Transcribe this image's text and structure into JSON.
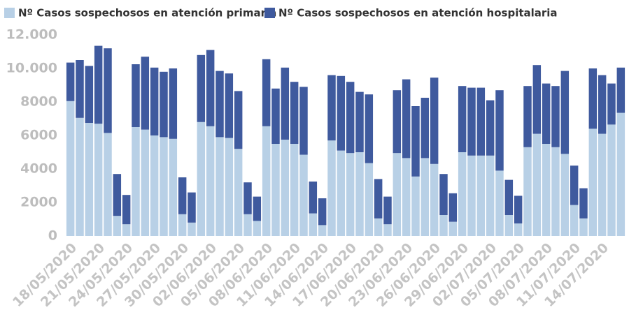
{
  "chart_data": {
    "type": "stacked_bar",
    "categories": [
      "18/05/2020",
      null,
      null,
      "21/05/2020",
      null,
      null,
      "24/05/2020",
      null,
      null,
      "27/05/2020",
      null,
      null,
      "30/05/2020",
      null,
      null,
      "02/06/2020",
      null,
      null,
      "05/06/2020",
      null,
      null,
      "08/06/2020",
      null,
      null,
      "11/06/2020",
      null,
      null,
      "14/06/2020",
      null,
      null,
      "17/06/2020",
      null,
      null,
      "20/06/2020",
      null,
      null,
      "23/06/2020",
      null,
      null,
      "26/06/2020",
      null,
      null,
      "29/06/2020",
      null,
      null,
      "02/07/2020",
      null,
      null,
      "05/07/2020",
      null,
      null,
      "08/07/2020",
      null,
      null,
      "11/07/2020",
      null,
      null,
      "14/07/2020",
      null,
      null
    ],
    "series": [
      {
        "name": "Nº Casos sospechosos en atención primaria",
        "color": "#b8d0e6",
        "values": [
          8050,
          7050,
          6750,
          6700,
          6150,
          1200,
          700,
          6500,
          6350,
          6000,
          5900,
          5800,
          1300,
          800,
          6800,
          6550,
          5900,
          5850,
          5200,
          1300,
          900,
          6550,
          5500,
          5750,
          5500,
          4850,
          1350,
          650,
          5700,
          5100,
          4950,
          5000,
          4350,
          1050,
          700,
          4950,
          4650,
          3550,
          4650,
          4300,
          1250,
          850,
          5000,
          4800,
          4800,
          4800,
          3900,
          1250,
          750,
          5300,
          6100,
          5500,
          5300,
          4900,
          1850,
          1050,
          6400,
          6100,
          6650,
          7350
        ]
      },
      {
        "name": "Nº Casos sospechosos en atención hospitalaria",
        "color": "#3f5a9e",
        "values": [
          2300,
          3450,
          3400,
          4650,
          5050,
          2500,
          1750,
          3750,
          4350,
          4050,
          3900,
          4200,
          2200,
          1800,
          4000,
          4550,
          3950,
          3850,
          3450,
          1900,
          1450,
          4000,
          3300,
          4300,
          3700,
          4050,
          1900,
          1600,
          3900,
          4450,
          4250,
          3600,
          4100,
          2350,
          1650,
          3750,
          4700,
          4200,
          3600,
          5150,
          2450,
          1700,
          3950,
          4050,
          4050,
          3300,
          4800,
          2100,
          1650,
          3650,
          4100,
          3600,
          3650,
          4950,
          2350,
          1800,
          3600,
          3500,
          2450,
          2700
        ]
      }
    ],
    "ylim": [
      0,
      12000
    ],
    "yticks": [
      0,
      2000,
      4000,
      6000,
      8000,
      {
        "value": 10000,
        "label": "10.000"
      },
      {
        "value": 12000,
        "label": "12.000"
      }
    ],
    "grid": false
  }
}
